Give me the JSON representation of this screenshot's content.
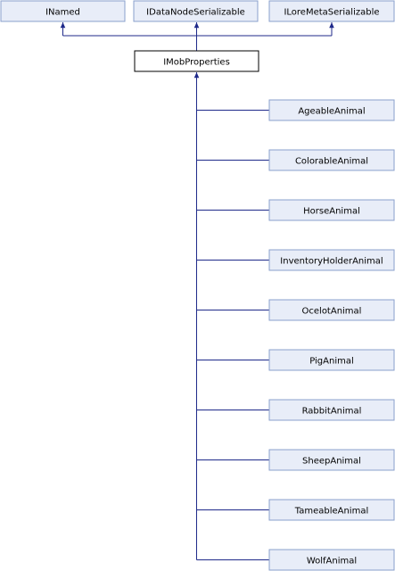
{
  "colors": {
    "node_fill": "#e8edf8",
    "node_border": "#8aa0cc",
    "focus_fill": "#ffffff",
    "focus_border": "#000000",
    "edge": "#1f2a8a",
    "text": "#000000"
  },
  "parents": [
    {
      "id": "inamed",
      "label": "INamed"
    },
    {
      "id": "idatanodeserializable",
      "label": "IDataNodeSerializable"
    },
    {
      "id": "iloremetaserializable",
      "label": "ILoreMetaSerializable"
    }
  ],
  "focus": {
    "id": "imobproperties",
    "label": "IMobProperties"
  },
  "children": [
    {
      "id": "ageableanimal",
      "label": "AgeableAnimal"
    },
    {
      "id": "colorableanimal",
      "label": "ColorableAnimal"
    },
    {
      "id": "horseanimal",
      "label": "HorseAnimal"
    },
    {
      "id": "inventoryholderanimal",
      "label": "InventoryHolderAnimal"
    },
    {
      "id": "ocelotanimal",
      "label": "OcelotAnimal"
    },
    {
      "id": "piganimal",
      "label": "PigAnimal"
    },
    {
      "id": "rabbitanimal",
      "label": "RabbitAnimal"
    },
    {
      "id": "sheepanimal",
      "label": "SheepAnimal"
    },
    {
      "id": "tameableanimal",
      "label": "TameableAnimal"
    },
    {
      "id": "wolfanimal",
      "label": "WolfAnimal"
    }
  ]
}
